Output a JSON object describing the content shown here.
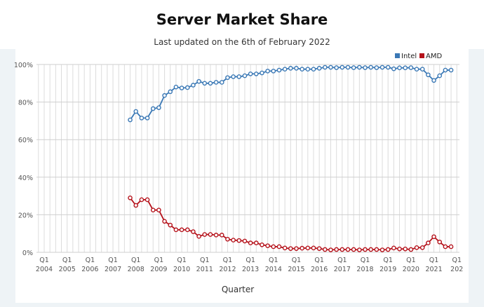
{
  "title": "Server Market Share",
  "subtitle": "Last updated on the 6th of February 2022",
  "chart_data": {
    "type": "line",
    "xlabel": "Quarter",
    "ylabel": "",
    "ylim": [
      0,
      100
    ],
    "yticks": [
      "0%",
      "20%",
      "40%",
      "60%",
      "80%",
      "100%"
    ],
    "xtick_years": [
      "2004",
      "2005",
      "2006",
      "2007",
      "2008",
      "2009",
      "2010",
      "2011",
      "2012",
      "2013",
      "2014",
      "2015",
      "2016",
      "2017",
      "2018",
      "2019",
      "2020",
      "2021",
      "202"
    ],
    "xtick_quarter": "Q1",
    "x_start": "Q4 2007",
    "x_end": "Q4 2021",
    "grid": true,
    "legend": "top-right",
    "series": [
      {
        "name": "Intel",
        "color": "#3a78b5",
        "values": [
          70.5,
          75,
          71.5,
          71.5,
          76.5,
          77,
          83.5,
          85.5,
          88,
          87.5,
          87.7,
          89,
          91,
          90,
          90,
          90.5,
          90.5,
          93,
          93.5,
          93.5,
          94,
          95,
          95,
          95.5,
          96.5,
          96.5,
          97,
          97.5,
          98,
          98,
          97.5,
          97.5,
          97.5,
          98,
          98.5,
          98.5,
          98.3,
          98.5,
          98.5,
          98.3,
          98.5,
          98.3,
          98.5,
          98.3,
          98.5,
          98.5,
          97.7,
          98.2,
          98.2,
          98.3,
          97.5,
          97.5,
          94.5,
          91.5,
          94,
          97,
          97
        ]
      },
      {
        "name": "AMD",
        "color": "#b5121b",
        "values": [
          29,
          25,
          28,
          28,
          22.5,
          22.5,
          16.5,
          14.5,
          12,
          12,
          12,
          11,
          8.5,
          9.5,
          9.5,
          9.2,
          9.2,
          7,
          6.5,
          6.3,
          6,
          5,
          5,
          4,
          3.5,
          3,
          3,
          2.3,
          2,
          2,
          2.2,
          2.3,
          2.3,
          2,
          1.5,
          1.3,
          1.5,
          1.5,
          1.5,
          1.5,
          1.3,
          1.5,
          1.5,
          1.5,
          1.3,
          1.5,
          2.3,
          1.8,
          1.8,
          1.5,
          2.5,
          2.5,
          5,
          8.3,
          5.5,
          3,
          3
        ]
      }
    ]
  }
}
